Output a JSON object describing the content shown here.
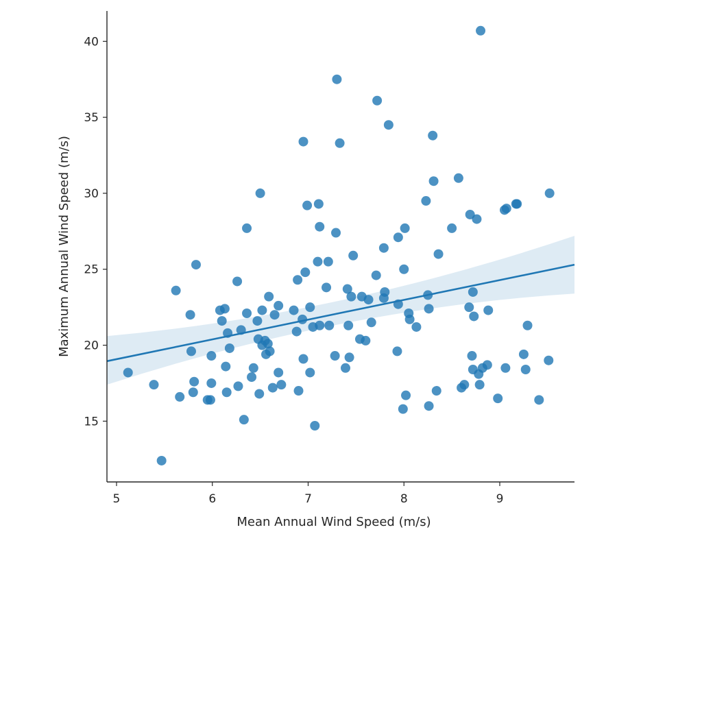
{
  "chart_data": {
    "type": "scatter",
    "title": "",
    "xlabel": "Mean Annual Wind Speed (m/s)",
    "ylabel": "Maximum Annual Wind Speed (m/s)",
    "xlim": [
      4.9,
      9.78
    ],
    "ylim": [
      11.0,
      42.0
    ],
    "xticks": [
      5,
      6,
      7,
      8,
      9
    ],
    "yticks": [
      15,
      20,
      25,
      30,
      35,
      40
    ],
    "grid": false,
    "color": "#1f77b4",
    "regression": {
      "x_start": 4.9,
      "y_start": 18.95,
      "x_end": 9.78,
      "y_end": 25.3,
      "ci_start": [
        17.4,
        20.6
      ],
      "ci_mid": [
        21.5,
        22.8
      ],
      "ci_end": [
        23.4,
        27.2
      ]
    },
    "points": [
      [
        8.8,
        40.7
      ],
      [
        7.3,
        37.5
      ],
      [
        7.72,
        36.1
      ],
      [
        7.84,
        34.5
      ],
      [
        8.3,
        33.8
      ],
      [
        6.95,
        33.4
      ],
      [
        7.33,
        33.3
      ],
      [
        8.31,
        30.8
      ],
      [
        8.57,
        31.0
      ],
      [
        6.5,
        30.0
      ],
      [
        9.52,
        30.0
      ],
      [
        6.99,
        29.2
      ],
      [
        7.11,
        29.3
      ],
      [
        8.23,
        29.5
      ],
      [
        9.05,
        28.9
      ],
      [
        9.07,
        29.0
      ],
      [
        9.17,
        29.3
      ],
      [
        9.18,
        29.3
      ],
      [
        8.69,
        28.6
      ],
      [
        8.76,
        28.3
      ],
      [
        6.36,
        27.7
      ],
      [
        7.12,
        27.8
      ],
      [
        8.01,
        27.7
      ],
      [
        8.5,
        27.7
      ],
      [
        7.29,
        27.4
      ],
      [
        7.94,
        27.1
      ],
      [
        7.79,
        26.4
      ],
      [
        8.36,
        26.0
      ],
      [
        7.47,
        25.9
      ],
      [
        5.83,
        25.3
      ],
      [
        7.1,
        25.5
      ],
      [
        7.21,
        25.5
      ],
      [
        8.0,
        25.0
      ],
      [
        6.97,
        24.8
      ],
      [
        7.71,
        24.6
      ],
      [
        6.26,
        24.2
      ],
      [
        6.89,
        24.3
      ],
      [
        5.62,
        23.6
      ],
      [
        7.19,
        23.8
      ],
      [
        7.41,
        23.7
      ],
      [
        7.8,
        23.5
      ],
      [
        8.25,
        23.3
      ],
      [
        8.72,
        23.5
      ],
      [
        6.59,
        23.2
      ],
      [
        7.45,
        23.2
      ],
      [
        7.56,
        23.2
      ],
      [
        7.63,
        23.0
      ],
      [
        7.79,
        23.1
      ],
      [
        6.69,
        22.6
      ],
      [
        7.94,
        22.7
      ],
      [
        6.08,
        22.3
      ],
      [
        6.13,
        22.4
      ],
      [
        6.36,
        22.1
      ],
      [
        6.52,
        22.3
      ],
      [
        6.65,
        22.0
      ],
      [
        6.85,
        22.3
      ],
      [
        7.02,
        22.5
      ],
      [
        8.05,
        22.1
      ],
      [
        8.26,
        22.4
      ],
      [
        8.68,
        22.5
      ],
      [
        8.88,
        22.3
      ],
      [
        5.77,
        22.0
      ],
      [
        6.1,
        21.6
      ],
      [
        6.47,
        21.6
      ],
      [
        6.94,
        21.7
      ],
      [
        7.05,
        21.2
      ],
      [
        7.12,
        21.3
      ],
      [
        7.22,
        21.3
      ],
      [
        7.42,
        21.3
      ],
      [
        7.66,
        21.5
      ],
      [
        8.06,
        21.7
      ],
      [
        8.13,
        21.2
      ],
      [
        8.73,
        21.9
      ],
      [
        9.29,
        21.3
      ],
      [
        6.3,
        21.0
      ],
      [
        6.16,
        20.8
      ],
      [
        6.88,
        20.9
      ],
      [
        6.48,
        20.4
      ],
      [
        6.52,
        20.0
      ],
      [
        6.55,
        20.3
      ],
      [
        6.58,
        20.1
      ],
      [
        7.54,
        20.4
      ],
      [
        7.6,
        20.3
      ],
      [
        6.18,
        19.8
      ],
      [
        6.56,
        19.4
      ],
      [
        6.6,
        19.6
      ],
      [
        5.78,
        19.6
      ],
      [
        5.99,
        19.3
      ],
      [
        6.95,
        19.1
      ],
      [
        7.28,
        19.3
      ],
      [
        7.43,
        19.2
      ],
      [
        7.93,
        19.6
      ],
      [
        8.71,
        19.3
      ],
      [
        9.25,
        19.4
      ],
      [
        9.51,
        19.0
      ],
      [
        6.14,
        18.6
      ],
      [
        6.43,
        18.5
      ],
      [
        7.02,
        18.2
      ],
      [
        7.39,
        18.5
      ],
      [
        8.72,
        18.4
      ],
      [
        8.82,
        18.5
      ],
      [
        8.87,
        18.7
      ],
      [
        9.06,
        18.5
      ],
      [
        9.27,
        18.4
      ],
      [
        5.12,
        18.2
      ],
      [
        6.41,
        17.9
      ],
      [
        6.69,
        18.2
      ],
      [
        8.78,
        18.1
      ],
      [
        5.81,
        17.6
      ],
      [
        5.99,
        17.5
      ],
      [
        6.27,
        17.3
      ],
      [
        6.63,
        17.2
      ],
      [
        6.72,
        17.4
      ],
      [
        5.39,
        17.4
      ],
      [
        8.6,
        17.2
      ],
      [
        8.63,
        17.4
      ],
      [
        8.79,
        17.4
      ],
      [
        6.9,
        17.0
      ],
      [
        8.34,
        17.0
      ],
      [
        5.8,
        16.9
      ],
      [
        6.15,
        16.9
      ],
      [
        6.49,
        16.8
      ],
      [
        8.02,
        16.7
      ],
      [
        5.66,
        16.6
      ],
      [
        5.95,
        16.4
      ],
      [
        5.98,
        16.4
      ],
      [
        8.98,
        16.5
      ],
      [
        9.41,
        16.4
      ],
      [
        7.99,
        15.8
      ],
      [
        8.26,
        16.0
      ],
      [
        6.33,
        15.1
      ],
      [
        7.07,
        14.7
      ],
      [
        5.47,
        12.4
      ]
    ]
  }
}
